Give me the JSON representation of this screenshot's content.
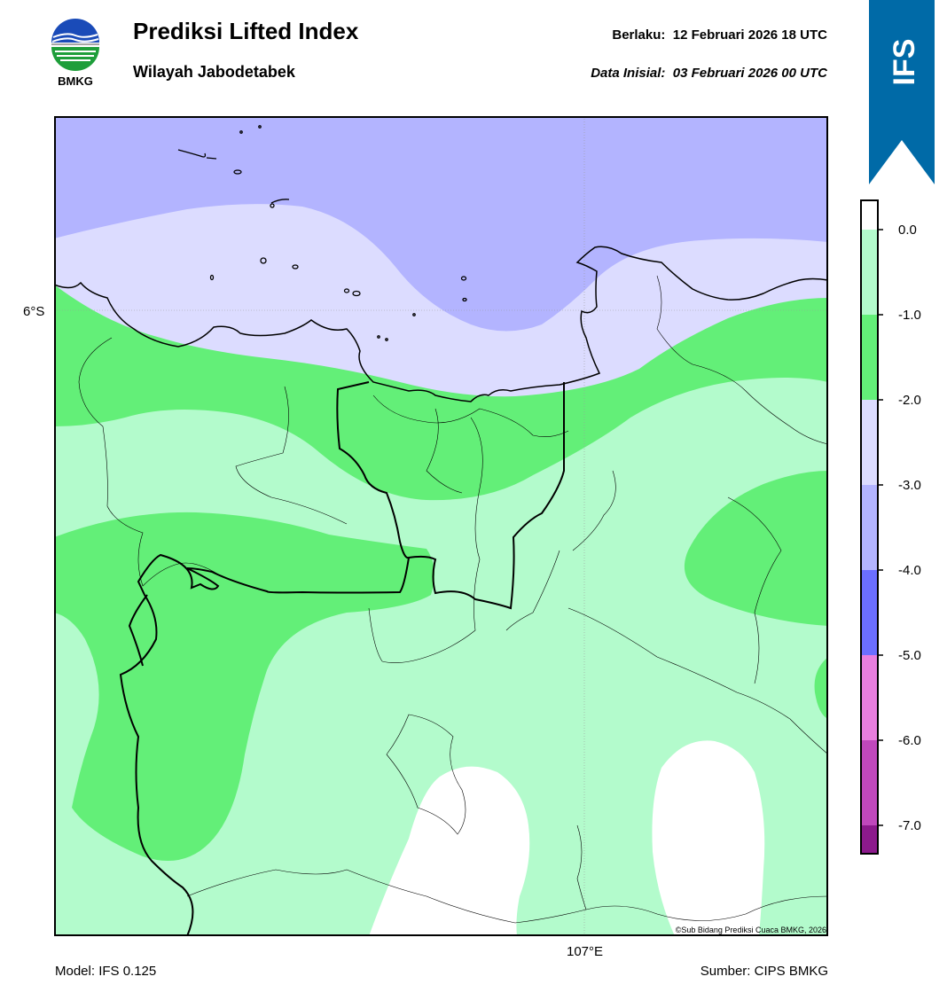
{
  "header": {
    "title": "Prediksi Lifted Index",
    "subtitle": "Wilayah Jabodetabek",
    "valid_label": "Berlaku:",
    "valid_value": "12 Februari 2026 18 UTC",
    "init_label": "Data Inisial:",
    "init_value": "03 Februari 2026 00 UTC"
  },
  "logo": {
    "text": "BMKG",
    "icon": "bmkg-logo-icon"
  },
  "ribbon": {
    "text": "IFS",
    "color": "#006aa7"
  },
  "map": {
    "lat_label": "6°S",
    "lon_label": "107°E",
    "copyright": "©Sub Bidang Prediksi Cuaca BMKG, 2026"
  },
  "legend": {
    "ticks": [
      "0.0",
      "-1.0",
      "-2.0",
      "-3.0",
      "-4.0",
      "-5.0",
      "-6.0",
      "-7.0"
    ],
    "colors": [
      "#ffffff",
      "#b3fbcc",
      "#63ef78",
      "#dcdcff",
      "#b3b4ff",
      "#6b6eff",
      "#e87ede",
      "#c048bc",
      "#8c1a8c"
    ]
  },
  "footer": {
    "model": "Model: IFS 0.125",
    "source": "Sumber: CIPS BMKG"
  }
}
